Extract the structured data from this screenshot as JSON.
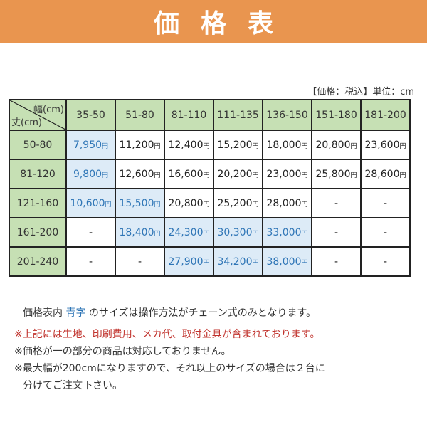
{
  "banner": {
    "title": "価格表",
    "color": "#e9954f"
  },
  "unit_note": "【価格：税込】単位：cm",
  "table": {
    "corner": {
      "width_label": "幅(cm)",
      "height_label": "丈(cm)"
    },
    "columns": [
      "35-50",
      "51-80",
      "81-110",
      "111-135",
      "136-150",
      "151-180",
      "181-200"
    ],
    "currency_suffix": "円",
    "rows": [
      {
        "label": "50-80",
        "cells": [
          {
            "v": "7,950",
            "blue": true
          },
          {
            "v": "11,200",
            "blue": false
          },
          {
            "v": "12,400",
            "blue": false
          },
          {
            "v": "15,200",
            "blue": false
          },
          {
            "v": "18,000",
            "blue": false
          },
          {
            "v": "20,800",
            "blue": false
          },
          {
            "v": "23,600",
            "blue": false
          }
        ]
      },
      {
        "label": "81-120",
        "cells": [
          {
            "v": "9,800",
            "blue": true
          },
          {
            "v": "12,600",
            "blue": false
          },
          {
            "v": "16,600",
            "blue": false
          },
          {
            "v": "20,200",
            "blue": false
          },
          {
            "v": "23,000",
            "blue": false
          },
          {
            "v": "25,800",
            "blue": false
          },
          {
            "v": "28,600",
            "blue": false
          }
        ]
      },
      {
        "label": "121-160",
        "cells": [
          {
            "v": "10,600",
            "blue": true
          },
          {
            "v": "15,500",
            "blue": true
          },
          {
            "v": "20,800",
            "blue": false
          },
          {
            "v": "25,200",
            "blue": false
          },
          {
            "v": "28,000",
            "blue": false
          },
          {
            "v": "-",
            "blue": false
          },
          {
            "v": "-",
            "blue": false
          }
        ]
      },
      {
        "label": "161-200",
        "cells": [
          {
            "v": "-",
            "blue": false
          },
          {
            "v": "18,400",
            "blue": true
          },
          {
            "v": "24,300",
            "blue": true
          },
          {
            "v": "30,300",
            "blue": true
          },
          {
            "v": "33,000",
            "blue": true
          },
          {
            "v": "-",
            "blue": false
          },
          {
            "v": "-",
            "blue": false
          }
        ]
      },
      {
        "label": "201-240",
        "cells": [
          {
            "v": "-",
            "blue": false
          },
          {
            "v": "-",
            "blue": false
          },
          {
            "v": "27,900",
            "blue": true
          },
          {
            "v": "34,200",
            "blue": true
          },
          {
            "v": "38,000",
            "blue": true
          },
          {
            "v": "-",
            "blue": false
          },
          {
            "v": "-",
            "blue": false
          }
        ]
      }
    ],
    "colors": {
      "header_bg": "#c6e0b4",
      "blue_bg": "#ddebf7",
      "blue_text": "#2e75b6"
    }
  },
  "notes": {
    "line1_prefix": "価格表内 ",
    "line1_blue": "青字",
    "line1_suffix": " のサイズは操作方法がチェーン式のみとなります。",
    "line2_mark": "※",
    "line2_red": "上記には生地、印刷費用、メカ代、取付金具が含まれております。",
    "line3": "※価格が一の部分の商品は対応しておりません。",
    "line4": "※最大幅が200cmになりますので、それ以上のサイズの場合は２台に",
    "line5": "分けてご注文下さい。",
    "red_color": "#c0312b"
  }
}
